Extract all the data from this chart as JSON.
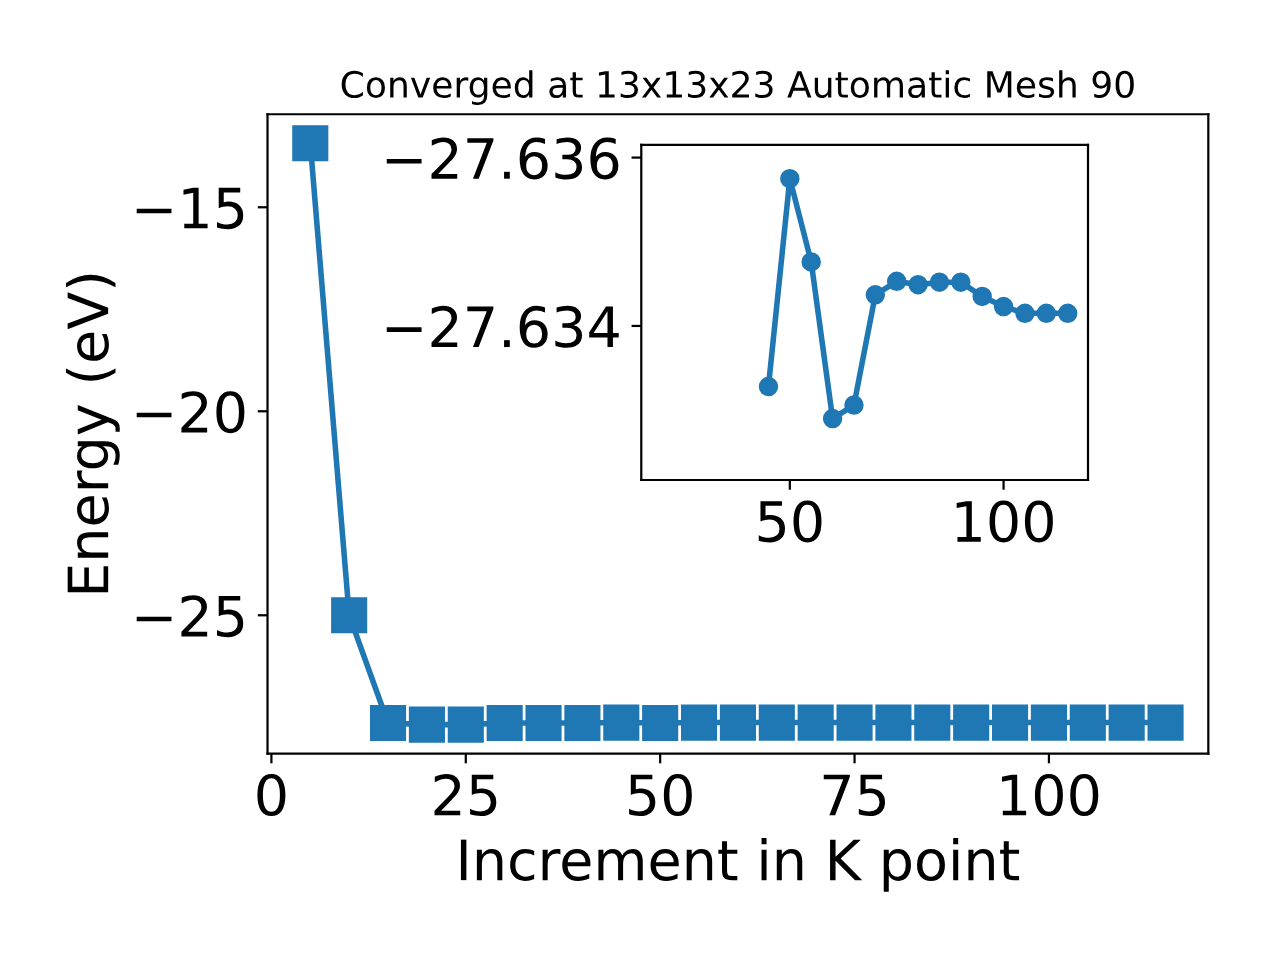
{
  "chart_data": [
    {
      "type": "line",
      "title": "Converged at 13x13x23 Automatic Mesh 90",
      "xlabel": "Increment in K point",
      "ylabel": "Energy (eV)",
      "x": [
        5,
        10,
        15,
        20,
        25,
        30,
        35,
        40,
        45,
        50,
        55,
        60,
        65,
        70,
        75,
        80,
        85,
        90,
        95,
        100,
        105,
        110,
        115
      ],
      "series": [
        {
          "color": "#1f77b4",
          "values": [
            -13.43,
            -25.0,
            -27.64,
            -27.68,
            -27.68,
            -27.64,
            -27.64,
            -27.64,
            -27.63,
            -27.64,
            -27.63,
            -27.63,
            -27.63,
            -27.63,
            -27.63,
            -27.63,
            -27.63,
            -27.63,
            -27.63,
            -27.63,
            -27.63,
            -27.63,
            -27.63
          ]
        }
      ],
      "xlim": [
        -0.5,
        120.5
      ],
      "ylim": [
        -28.39,
        -12.72
      ],
      "xticks": [
        0,
        25,
        50,
        75,
        100
      ],
      "yticks": [
        -25,
        -20,
        -15
      ],
      "marker": "square",
      "line_style": "solid",
      "grid": false,
      "legend": false
    },
    {
      "type": "line",
      "x": [
        45,
        50,
        55,
        60,
        65,
        70,
        75,
        80,
        85,
        90,
        95,
        100,
        105,
        110,
        115
      ],
      "series": [
        {
          "color": "#1f77b4",
          "values": [
            -27.63328,
            -27.63575,
            -27.63476,
            -27.6329,
            -27.63306,
            -27.63437,
            -27.63453,
            -27.63449,
            -27.63452,
            -27.63452,
            -27.63435,
            -27.63423,
            -27.63415,
            -27.63415,
            -27.63415
          ]
        }
      ],
      "xlim": [
        15.25,
        119.75
      ],
      "ylim": [
        -27.63217,
        -27.63615
      ],
      "xticks": [
        50,
        100
      ],
      "yticks": [
        -27.636,
        -27.634
      ],
      "marker": "circle",
      "line_style": "solid",
      "grid": false,
      "legend": false
    }
  ]
}
